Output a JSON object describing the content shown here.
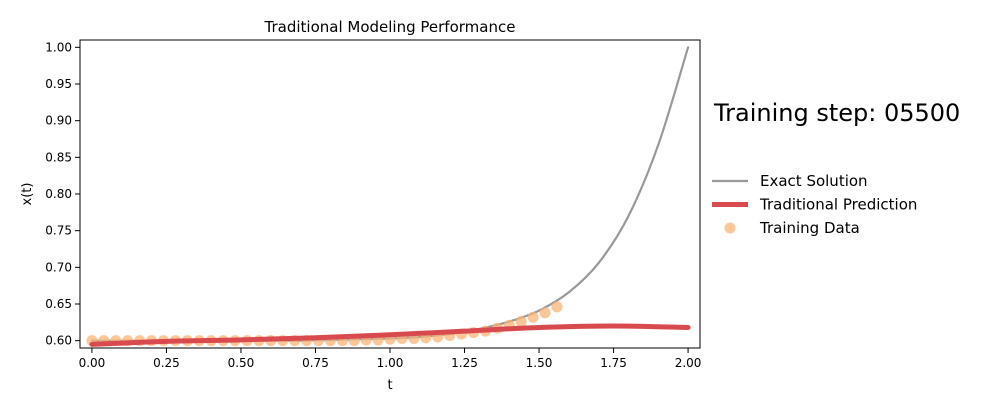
{
  "chart_data": {
    "type": "line",
    "title": "Traditional Modeling Performance",
    "xlabel": "t",
    "ylabel": "x(t)",
    "xlim": [
      -0.04,
      2.04
    ],
    "ylim": [
      0.59,
      1.01
    ],
    "xticks": [
      "0.00",
      "0.25",
      "0.50",
      "0.75",
      "1.00",
      "1.25",
      "1.50",
      "1.75",
      "2.00"
    ],
    "yticks": [
      "0.60",
      "0.65",
      "0.70",
      "0.75",
      "0.80",
      "0.85",
      "0.90",
      "0.95",
      "1.00"
    ],
    "annotation": "Training step: 05500",
    "legend_position": "right",
    "series": [
      {
        "name": "Exact Solution",
        "kind": "line",
        "color": "#999999",
        "x": [
          0.0,
          0.1,
          0.2,
          0.3,
          0.4,
          0.5,
          0.6,
          0.7,
          0.8,
          0.9,
          1.0,
          1.1,
          1.2,
          1.3,
          1.4,
          1.5,
          1.6,
          1.7,
          1.8,
          1.9,
          2.0
        ],
        "y": [
          0.6,
          0.6,
          0.6,
          0.6,
          0.6,
          0.6,
          0.6,
          0.6,
          0.601,
          0.602,
          0.603,
          0.605,
          0.609,
          0.616,
          0.626,
          0.641,
          0.666,
          0.706,
          0.77,
          0.867,
          1.0
        ]
      },
      {
        "name": "Traditional Prediction",
        "kind": "line",
        "color": "#d94a4f",
        "x": [
          0.0,
          0.25,
          0.5,
          0.75,
          1.0,
          1.25,
          1.5,
          1.75,
          2.0
        ],
        "y": [
          0.595,
          0.599,
          0.601,
          0.604,
          0.608,
          0.613,
          0.618,
          0.62,
          0.618
        ]
      },
      {
        "name": "Training Data",
        "kind": "scatter",
        "color": "#f9b477",
        "x": [
          0.0,
          0.04,
          0.08,
          0.12,
          0.16,
          0.2,
          0.24,
          0.28,
          0.32,
          0.36,
          0.4,
          0.44,
          0.48,
          0.52,
          0.56,
          0.6,
          0.64,
          0.68,
          0.72,
          0.76,
          0.8,
          0.84,
          0.88,
          0.92,
          0.96,
          1.0,
          1.04,
          1.08,
          1.12,
          1.16,
          1.2,
          1.24,
          1.28,
          1.32,
          1.36,
          1.4,
          1.44,
          1.48,
          1.52,
          1.56
        ],
        "y": [
          0.6,
          0.6,
          0.6,
          0.6,
          0.6,
          0.6,
          0.6,
          0.6,
          0.6,
          0.6,
          0.6,
          0.6,
          0.6,
          0.6,
          0.6,
          0.6,
          0.6,
          0.6,
          0.6,
          0.6,
          0.6,
          0.6,
          0.6,
          0.601,
          0.601,
          0.602,
          0.603,
          0.603,
          0.604,
          0.605,
          0.607,
          0.609,
          0.611,
          0.613,
          0.617,
          0.621,
          0.626,
          0.632,
          0.638,
          0.646
        ]
      }
    ]
  }
}
